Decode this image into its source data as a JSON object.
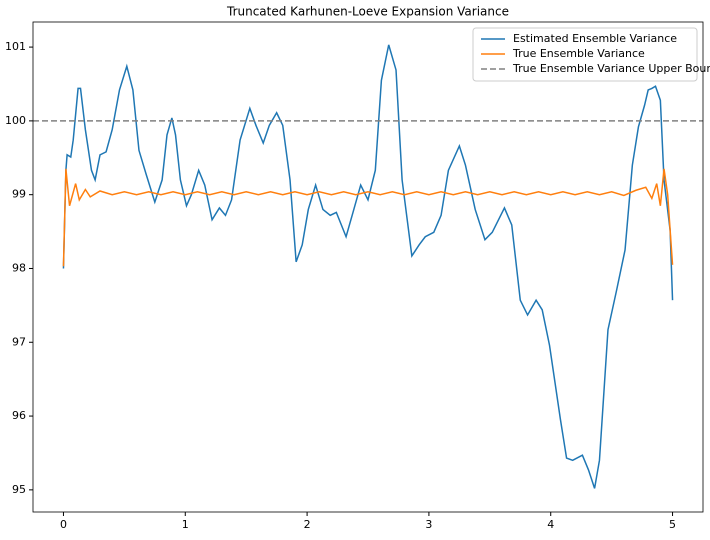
{
  "chart_data": {
    "type": "line",
    "title": "Truncated Karhunen-Loeve Expansion Variance",
    "xlim": [
      -0.25,
      5.25
    ],
    "ylim": [
      94.7,
      101.34
    ],
    "xticks": [
      0,
      1,
      2,
      3,
      4,
      5
    ],
    "yticks": [
      95,
      96,
      97,
      98,
      99,
      100,
      101
    ],
    "legend": "upper right",
    "series": [
      {
        "name": "Estimated Ensemble Variance",
        "color": "#1f77b4",
        "x": [
          0,
          0.02,
          0.03,
          0.06,
          0.08,
          0.12,
          0.14,
          0.18,
          0.23,
          0.26,
          0.3,
          0.35,
          0.4,
          0.46,
          0.52,
          0.57,
          0.62,
          0.68,
          0.75,
          0.81,
          0.85,
          0.89,
          0.92,
          0.96,
          1.01,
          1.05,
          1.11,
          1.16,
          1.22,
          1.28,
          1.33,
          1.38,
          1.45,
          1.53,
          1.58,
          1.64,
          1.69,
          1.75,
          1.8,
          1.86,
          1.91,
          1.96,
          2.01,
          2.07,
          2.13,
          2.19,
          2.24,
          2.32,
          2.37,
          2.44,
          2.5,
          2.56,
          2.61,
          2.67,
          2.73,
          2.78,
          2.86,
          2.92,
          2.97,
          3.04,
          3.1,
          3.16,
          3.25,
          3.3,
          3.38,
          3.46,
          3.52,
          3.62,
          3.68,
          3.75,
          3.81,
          3.88,
          3.93,
          3.99,
          4.08,
          4.13,
          4.18,
          4.26,
          4.31,
          4.36,
          4.4,
          4.47,
          4.54,
          4.61,
          4.67,
          4.72,
          4.77,
          4.8,
          4.83,
          4.86,
          4.9,
          4.93,
          4.96,
          4.98,
          5.0
        ],
        "values": [
          98.0,
          99.33,
          99.54,
          99.51,
          99.74,
          100.44,
          100.44,
          99.88,
          99.33,
          99.2,
          99.54,
          99.58,
          99.88,
          100.42,
          100.74,
          100.42,
          99.6,
          99.27,
          98.9,
          99.2,
          99.81,
          100.04,
          99.81,
          99.2,
          98.85,
          99.0,
          99.33,
          99.13,
          98.66,
          98.82,
          98.72,
          98.93,
          99.74,
          100.17,
          99.94,
          99.7,
          99.94,
          100.11,
          99.94,
          99.2,
          98.09,
          98.32,
          98.8,
          99.13,
          98.8,
          98.72,
          98.76,
          98.43,
          98.72,
          99.13,
          98.93,
          99.33,
          100.55,
          101.03,
          100.69,
          99.2,
          98.17,
          98.32,
          98.43,
          98.49,
          98.72,
          99.33,
          99.66,
          99.4,
          98.8,
          98.39,
          98.49,
          98.82,
          98.59,
          97.57,
          97.37,
          97.57,
          97.44,
          96.96,
          95.95,
          95.43,
          95.4,
          95.47,
          95.27,
          95.02,
          95.4,
          97.17,
          97.7,
          98.25,
          99.4,
          99.92,
          100.21,
          100.42,
          100.44,
          100.47,
          100.28,
          99.2,
          98.79,
          98.52,
          97.57
        ]
      },
      {
        "name": "True Ensemble Variance",
        "color": "#ff7f0e",
        "x": [
          0,
          0.02,
          0.05,
          0.1,
          0.13,
          0.18,
          0.22,
          0.3,
          0.4,
          0.5,
          0.6,
          0.7,
          0.8,
          0.9,
          1.0,
          1.1,
          1.2,
          1.3,
          1.4,
          1.5,
          1.6,
          1.7,
          1.8,
          1.9,
          2.0,
          2.1,
          2.2,
          2.3,
          2.4,
          2.5,
          2.6,
          2.7,
          2.8,
          2.9,
          3.0,
          3.1,
          3.2,
          3.3,
          3.4,
          3.5,
          3.6,
          3.7,
          3.8,
          3.9,
          4.0,
          4.1,
          4.2,
          4.3,
          4.4,
          4.5,
          4.6,
          4.7,
          4.78,
          4.83,
          4.87,
          4.9,
          4.93,
          4.96,
          5.0
        ],
        "values": [
          98.03,
          99.35,
          98.85,
          99.15,
          98.93,
          99.07,
          98.97,
          99.05,
          99.0,
          99.04,
          99.0,
          99.04,
          99.0,
          99.04,
          99.0,
          99.04,
          99.0,
          99.04,
          99.0,
          99.04,
          99.0,
          99.04,
          99.0,
          99.04,
          99.0,
          99.04,
          99.0,
          99.04,
          99.0,
          99.04,
          99.0,
          99.04,
          99.0,
          99.04,
          99.0,
          99.04,
          99.0,
          99.04,
          99.0,
          99.04,
          99.0,
          99.04,
          99.0,
          99.04,
          99.0,
          99.04,
          99.0,
          99.04,
          99.0,
          99.04,
          98.99,
          99.06,
          99.1,
          98.95,
          99.15,
          98.85,
          99.35,
          99.0,
          98.05
        ]
      }
    ],
    "hlines": [
      {
        "name": "True Ensemble Variance Upper Bound",
        "value": 100,
        "color": "#808080"
      }
    ]
  }
}
